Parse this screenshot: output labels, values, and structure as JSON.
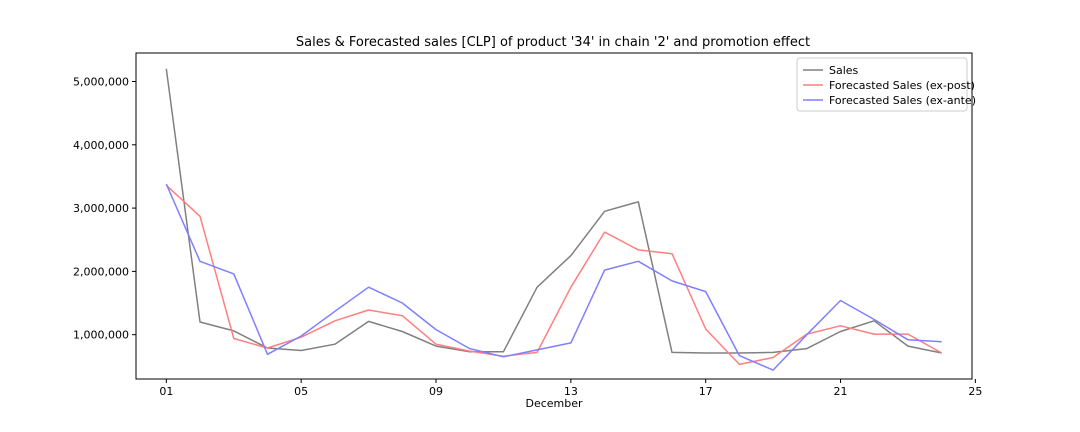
{
  "chart_data": {
    "type": "line",
    "title": "Sales & Forecasted sales [CLP] of product '34' in chain '2' and promotion effect",
    "xlabel": "December",
    "ylabel": "",
    "x": [
      1,
      2,
      3,
      4,
      5,
      6,
      7,
      8,
      9,
      10,
      11,
      12,
      13,
      14,
      15,
      16,
      17,
      18,
      19,
      20,
      21,
      22,
      23,
      24
    ],
    "xlim": [
      0.1,
      24.9
    ],
    "ylim": [
      300000,
      5450000
    ],
    "x_ticks": [
      {
        "value": 1,
        "label": "01"
      },
      {
        "value": 5,
        "label": "05"
      },
      {
        "value": 9,
        "label": "09"
      },
      {
        "value": 13,
        "label": "13"
      },
      {
        "value": 17,
        "label": "17"
      },
      {
        "value": 21,
        "label": "21"
      },
      {
        "value": 25,
        "label": "25"
      }
    ],
    "y_ticks": [
      {
        "value": 1000000,
        "label": "1,000,000"
      },
      {
        "value": 2000000,
        "label": "2,000,000"
      },
      {
        "value": 3000000,
        "label": "3,000,000"
      },
      {
        "value": 4000000,
        "label": "4,000,000"
      },
      {
        "value": 5000000,
        "label": "5,000,000"
      }
    ],
    "grid": false,
    "legend_position": "top-right",
    "series": [
      {
        "name": "Sales",
        "color": "#808080",
        "values": [
          5200000,
          1200000,
          1060000,
          790000,
          750000,
          850000,
          1210000,
          1050000,
          820000,
          730000,
          730000,
          1750000,
          2250000,
          2950000,
          3100000,
          720000,
          710000,
          710000,
          720000,
          780000,
          1050000,
          1220000,
          820000,
          710000
        ]
      },
      {
        "name": "Forecasted Sales (ex-post)",
        "color": "#ff7f7f",
        "values": [
          3360000,
          2870000,
          940000,
          790000,
          960000,
          1220000,
          1390000,
          1300000,
          850000,
          740000,
          660000,
          720000,
          1750000,
          2620000,
          2340000,
          2280000,
          1090000,
          530000,
          640000,
          1010000,
          1140000,
          1010000,
          1010000,
          710000
        ]
      },
      {
        "name": "Forecasted Sales (ex-ante)",
        "color": "#7f7fff",
        "values": [
          3380000,
          2160000,
          1960000,
          690000,
          980000,
          1370000,
          1750000,
          1500000,
          1080000,
          780000,
          650000,
          760000,
          870000,
          2020000,
          2160000,
          1850000,
          1680000,
          670000,
          440000,
          1000000,
          1540000,
          1240000,
          920000,
          890000
        ]
      }
    ]
  }
}
